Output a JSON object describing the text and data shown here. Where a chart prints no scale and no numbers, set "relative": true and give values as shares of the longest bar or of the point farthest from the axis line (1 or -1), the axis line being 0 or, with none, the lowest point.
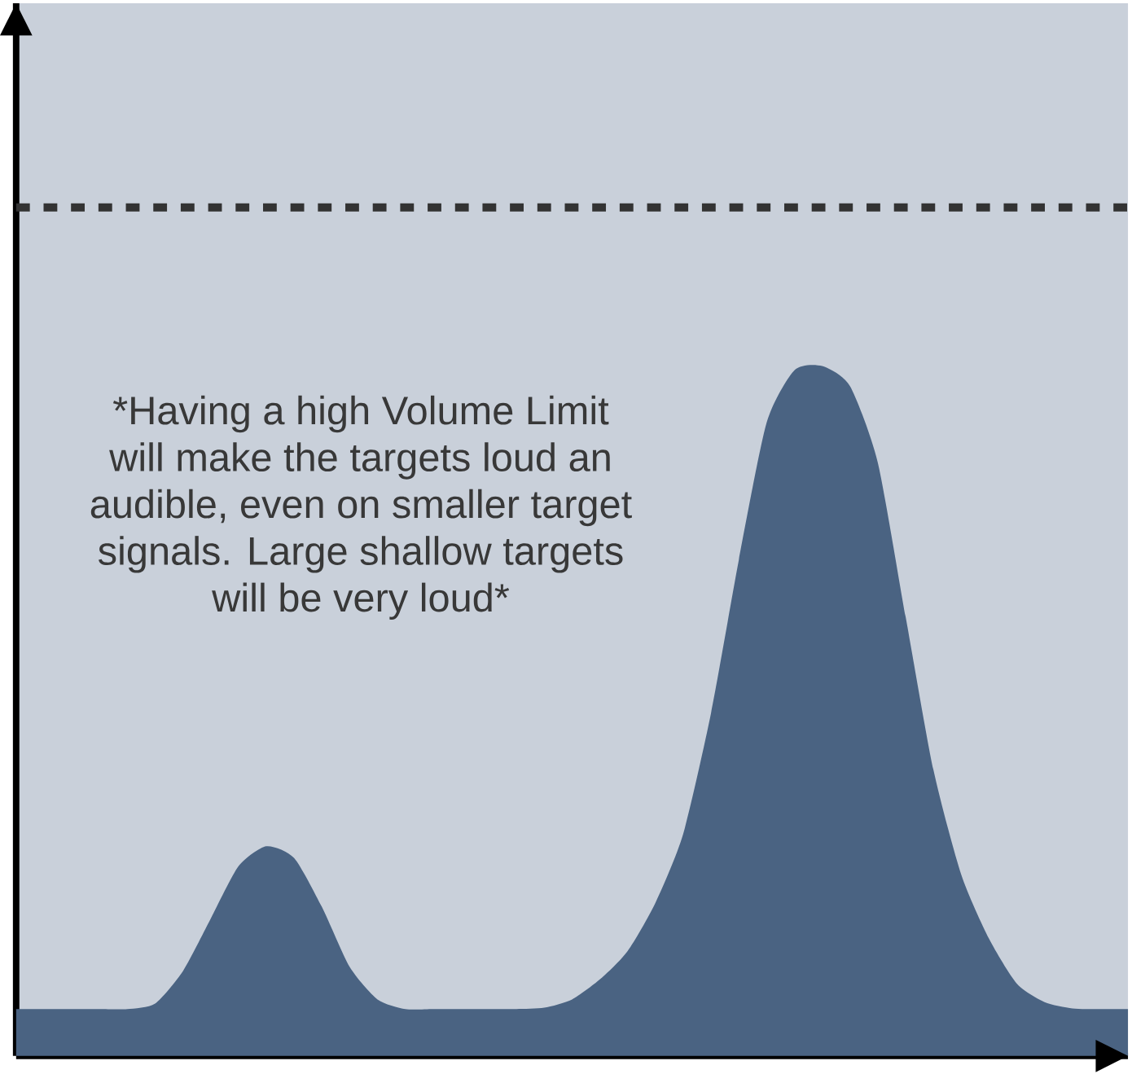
{
  "chart_data": {
    "type": "area",
    "relative": true,
    "color": "#4a6382",
    "categories": [
      null,
      null,
      null,
      null,
      null,
      null,
      null,
      null,
      null,
      null,
      null,
      null,
      null,
      null,
      null,
      null,
      null,
      null,
      null,
      null,
      null,
      null,
      null,
      null,
      null,
      null,
      null,
      null,
      null,
      null,
      null,
      null,
      null,
      null,
      null,
      null,
      null,
      null,
      null,
      null,
      null
    ],
    "values": [
      0.068,
      0.068,
      0.068,
      0.068,
      0.068,
      0.076,
      0.123,
      0.199,
      0.275,
      0.304,
      0.287,
      0.216,
      0.129,
      0.082,
      0.068,
      0.068,
      0.068,
      0.068,
      0.068,
      0.07,
      0.082,
      0.111,
      0.152,
      0.222,
      0.322,
      0.497,
      0.719,
      0.918,
      0.994,
      1.0,
      0.971,
      0.86,
      0.637,
      0.415,
      0.263,
      0.17,
      0.105,
      0.078,
      0.069,
      0.068,
      0.068
    ],
    "ref_lines": [
      {
        "axis": "y",
        "value": 1.23,
        "color": "#333333",
        "line_style": "dashed"
      }
    ],
    "annotations": [
      "*Having a high Volume Limit",
      "will make the targets loud an",
      "audible, even on smaller target",
      "signals. Large shallow targets",
      "will be very loud*"
    ]
  }
}
